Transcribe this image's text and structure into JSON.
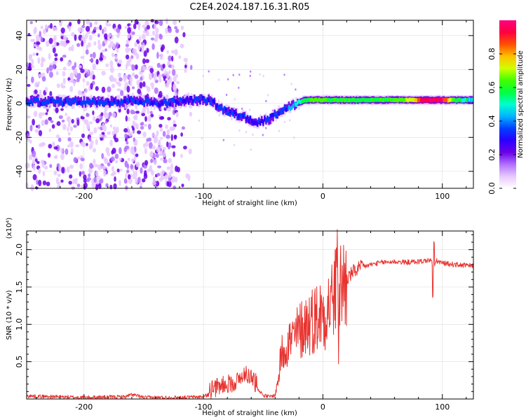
{
  "title": "C2E4.2024.187.16.31.R05",
  "chart_data": [
    {
      "type": "heatmap",
      "panel": "spectrogram",
      "xlabel": "Height of straight line (km)",
      "ylabel": "Frequency (Hz)",
      "xlim": [
        -248,
        126
      ],
      "ylim": [
        -50,
        49
      ],
      "xticks": [
        -200,
        -100,
        0,
        100
      ],
      "xtick_labels": [
        "-200",
        "-100",
        "0",
        "100"
      ],
      "yticks": [
        -40,
        -20,
        0,
        20,
        40
      ],
      "ytick_labels": [
        "-40",
        "-20",
        "0",
        "20",
        "40"
      ],
      "colorbar": {
        "label": "Normalized spectral amplitude",
        "range": [
          0,
          1
        ],
        "ticks": [
          0.0,
          0.2,
          0.4,
          0.6,
          0.8
        ],
        "tick_labels": [
          "0.0",
          "0.2",
          "0.4",
          "0.6",
          "0.8"
        ],
        "colors": [
          "#ffffff",
          "#e8c8ff",
          "#b070ff",
          "#6a00e8",
          "#2a00ff",
          "#0040ff",
          "#00b4ff",
          "#00ffd0",
          "#00ff40",
          "#40ff00",
          "#d0ff00",
          "#ffc000",
          "#ff5000",
          "#ff0040",
          "#ff0080"
        ]
      },
      "ridge": {
        "x": [
          -248,
          -200,
          -170,
          -160,
          -140,
          -125,
          -110,
          -95,
          -85,
          -75,
          -62,
          -55,
          -48,
          -42,
          -35,
          -28,
          -22,
          -15,
          -5,
          0,
          10,
          30,
          60,
          90,
          110,
          126
        ],
        "y": [
          1,
          1,
          1,
          2,
          0,
          1,
          2,
          2,
          -3,
          -6,
          -9,
          -11,
          -10,
          -8,
          -4,
          -2,
          0,
          2,
          2,
          2,
          2,
          2,
          2,
          2,
          2,
          2
        ]
      },
      "ridge_amplitude": {
        "x": [
          -248,
          -170,
          -125,
          -100,
          -60,
          -30,
          -10,
          10,
          40,
          60,
          75,
          82,
          90,
          100,
          110,
          126
        ],
        "a": [
          0.35,
          0.35,
          0.32,
          0.33,
          0.3,
          0.35,
          0.65,
          0.6,
          0.58,
          0.62,
          0.72,
          0.93,
          0.95,
          0.96,
          0.6,
          0.45
        ]
      }
    },
    {
      "type": "line",
      "panel": "snr",
      "xlabel": "Height of straight line (km)",
      "ylabel": "SNR (10 * v/v)",
      "scale_label": "(x10⁴)",
      "color": "#e8332f",
      "xlim": [
        -248,
        126
      ],
      "ylim": [
        0,
        2.25
      ],
      "xticks": [
        -200,
        -100,
        0,
        100
      ],
      "xtick_labels": [
        "-200",
        "-100",
        "0",
        "100"
      ],
      "yticks": [
        0.5,
        1.0,
        1.5,
        2.0
      ],
      "ytick_labels": [
        "0.5",
        "1.0",
        "1.5",
        "2.0"
      ],
      "x": [
        -248,
        -200,
        -165,
        -160,
        -150,
        -120,
        -100,
        -90,
        -80,
        -70,
        -65,
        -60,
        -50,
        -45,
        -40,
        -37,
        -35,
        -30,
        -25,
        -20,
        -15,
        -10,
        -5,
        0,
        5,
        8,
        12,
        15,
        20,
        25,
        30,
        40,
        50,
        60,
        70,
        80,
        90,
        92,
        93,
        95,
        100,
        110,
        126
      ],
      "y": [
        0.04,
        0.02,
        0.03,
        0.06,
        0.02,
        0.02,
        0.03,
        0.1,
        0.15,
        0.2,
        0.3,
        0.25,
        0.05,
        0.03,
        0.05,
        0.3,
        0.6,
        0.75,
        0.8,
        0.9,
        1.0,
        1.05,
        1.1,
        1.15,
        1.25,
        1.35,
        1.45,
        1.5,
        1.6,
        1.7,
        1.75,
        1.8,
        1.83,
        1.84,
        1.83,
        1.84,
        1.86,
        1.8,
        1.75,
        1.85,
        1.82,
        1.8,
        1.78
      ]
    }
  ]
}
